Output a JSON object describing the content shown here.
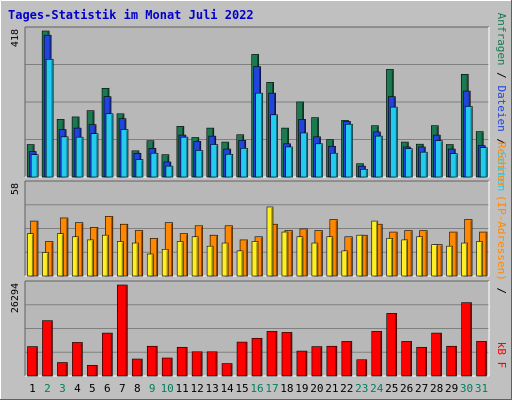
{
  "title": "Tages-Statistik im Monat Juli 2022",
  "colors": {
    "background": "#c0c0c0",
    "plot_bg": "#b8b8b8",
    "title_text": "#0000cc",
    "anfragen": "#1c7a52",
    "dateien": "#2244dd",
    "seiten": "#22ccee",
    "rechner": "#ff8800",
    "besuche": "#ffee22",
    "kbf": "#ff0000",
    "weekend_label": "#008060"
  },
  "chart_data": [
    {
      "type": "bar",
      "title": "Tages-Statistik im Monat Juli 2022",
      "categories": [
        "1",
        "2",
        "3",
        "4",
        "5",
        "6",
        "7",
        "8",
        "9",
        "10",
        "11",
        "12",
        "13",
        "14",
        "15",
        "16",
        "17",
        "18",
        "19",
        "20",
        "21",
        "22",
        "23",
        "24",
        "25",
        "26",
        "27",
        "28",
        "29",
        "30",
        "31"
      ],
      "weekend_days": [
        "2",
        "3",
        "9",
        "10",
        "16",
        "17",
        "23",
        "24",
        "30",
        "31"
      ],
      "ymax_label": "418",
      "ylim": [
        0,
        418
      ],
      "legend": {
        "anfragen": "Anfragen",
        "dateien": "Dateien",
        "seiten": "Seiten",
        "sep": " / "
      },
      "series": [
        {
          "name": "Anfragen",
          "values": [
            93,
            418,
            165,
            172,
            190,
            254,
            181,
            75,
            104,
            64,
            145,
            113,
            140,
            100,
            121,
            351,
            271,
            140,
            215,
            170,
            107,
            162,
            38,
            147,
            308,
            100,
            94,
            147,
            93,
            294,
            130
          ]
        },
        {
          "name": "Dateien",
          "values": [
            73,
            406,
            136,
            140,
            150,
            230,
            167,
            68,
            82,
            43,
            120,
            102,
            117,
            80,
            105,
            316,
            240,
            95,
            165,
            115,
            88,
            159,
            31,
            129,
            230,
            86,
            86,
            120,
            80,
            246,
            90
          ]
        },
        {
          "name": "Seiten",
          "values": [
            64,
            337,
            115,
            114,
            124,
            181,
            136,
            50,
            68,
            31,
            114,
            76,
            93,
            65,
            82,
            240,
            178,
            86,
            126,
            95,
            68,
            151,
            22,
            117,
            200,
            81,
            71,
            104,
            67,
            202,
            84
          ]
        }
      ]
    },
    {
      "type": "bar",
      "ymax_label": "58",
      "ylim": [
        0,
        58
      ],
      "legend": {
        "rechner": "Rechner (IP-Adressen)",
        "sep": " / "
      },
      "series": [
        {
          "name": "Rechner (IP-Adressen)",
          "values": [
            35,
            22,
            37,
            34,
            31,
            38,
            33,
            29,
            24,
            34,
            27,
            32,
            26,
            32,
            23,
            25,
            33,
            29,
            30,
            29,
            36,
            25,
            26,
            33,
            28,
            29,
            29,
            20,
            28,
            36,
            28
          ]
        },
        {
          "name": "Besuche",
          "values": [
            27,
            15,
            27,
            25,
            23,
            26,
            22,
            21,
            14,
            17,
            22,
            25,
            19,
            21,
            16,
            22,
            44,
            28,
            25,
            21,
            25,
            16,
            26,
            35,
            24,
            23,
            25,
            20,
            19,
            21,
            22
          ]
        }
      ]
    },
    {
      "type": "bar",
      "ymax_label": "26294",
      "ylim": [
        0,
        26294
      ],
      "legend": {
        "kbf": "kB F"
      },
      "series": [
        {
          "name": "kB F",
          "values": [
            8500,
            16000,
            3900,
            9700,
            3100,
            12400,
            26294,
            4900,
            8600,
            5200,
            8300,
            7000,
            7000,
            3600,
            9800,
            10900,
            12900,
            12600,
            7200,
            8500,
            8600,
            10000,
            4700,
            12900,
            18100,
            10000,
            8300,
            12400,
            8600,
            21200,
            10000
          ]
        }
      ]
    }
  ]
}
